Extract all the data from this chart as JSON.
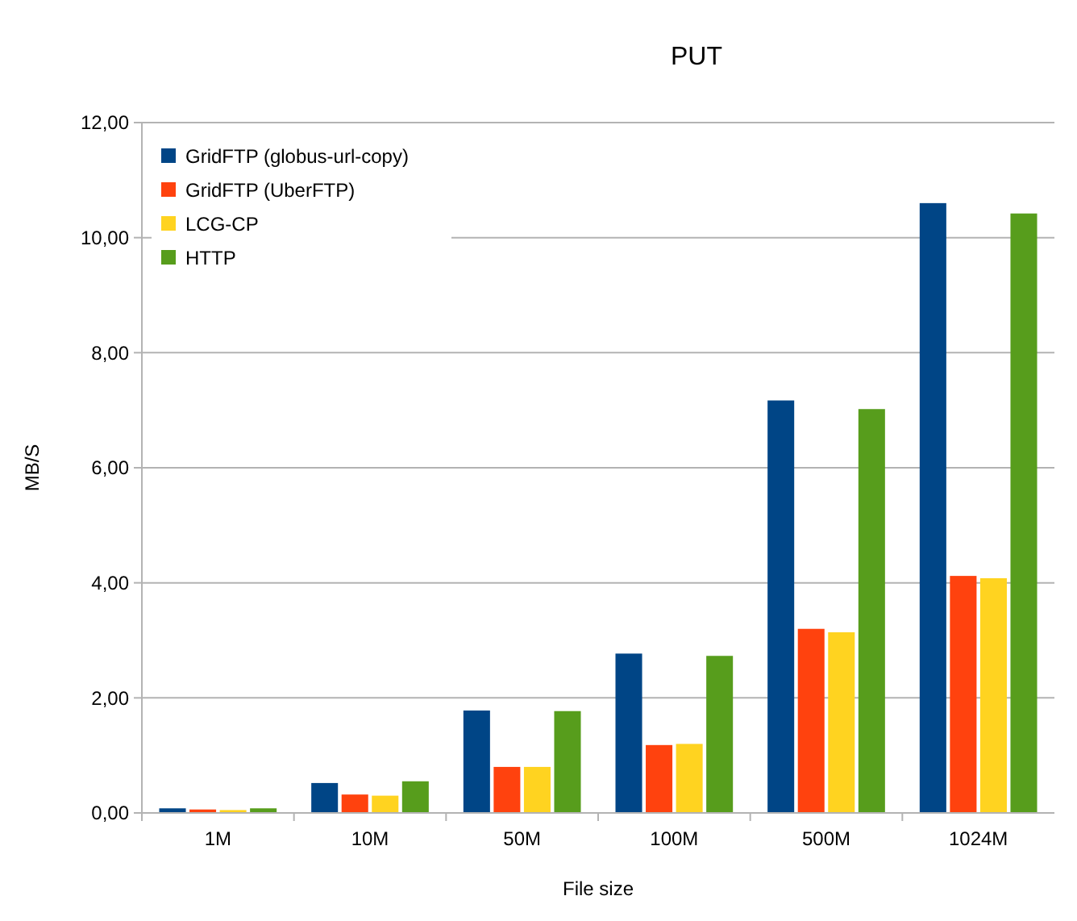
{
  "chart_data": {
    "type": "bar",
    "title": "PUT",
    "xlabel": "File size",
    "ylabel": "MB/S",
    "categories": [
      "1M",
      "10M",
      "50M",
      "100M",
      "500M",
      "1024M"
    ],
    "series": [
      {
        "name": "GridFTP (globus-url-copy)",
        "color": "#004586",
        "values": [
          0.08,
          0.52,
          1.78,
          2.77,
          7.17,
          10.6
        ]
      },
      {
        "name": "GridFTP (UberFTP)",
        "color": "#ff420e",
        "values": [
          0.06,
          0.32,
          0.8,
          1.18,
          3.2,
          4.12
        ]
      },
      {
        "name": "LCG-CP",
        "color": "#ffd320",
        "values": [
          0.05,
          0.3,
          0.8,
          1.2,
          3.14,
          4.08
        ]
      },
      {
        "name": "HTTP",
        "color": "#579d1c",
        "values": [
          0.08,
          0.55,
          1.77,
          2.73,
          7.02,
          10.42
        ]
      }
    ],
    "ylim": [
      0,
      12
    ],
    "yticks": [
      {
        "value": 0,
        "label": "0,00"
      },
      {
        "value": 2,
        "label": "2,00"
      },
      {
        "value": 4,
        "label": "4,00"
      },
      {
        "value": 6,
        "label": "6,00"
      },
      {
        "value": 8,
        "label": "8,00"
      },
      {
        "value": 10,
        "label": "10,00"
      },
      {
        "value": 12,
        "label": "12,00"
      }
    ],
    "grid": "y",
    "legend": "top left"
  }
}
